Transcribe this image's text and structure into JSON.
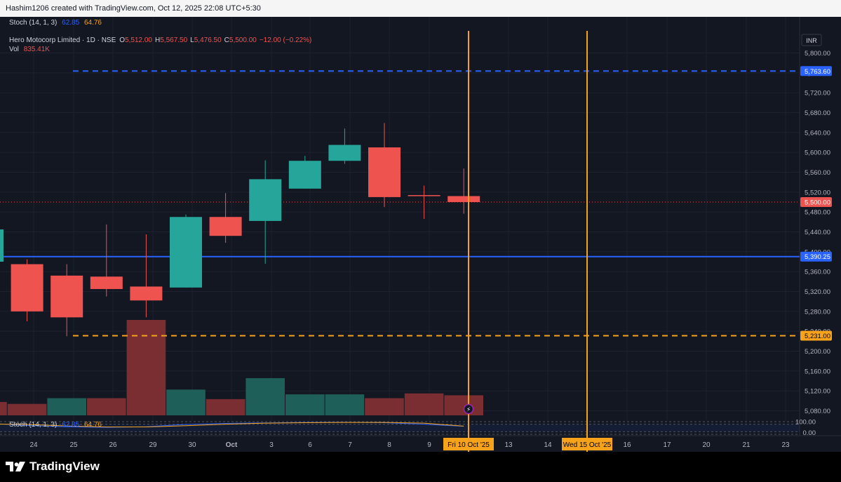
{
  "header": {
    "attribution": "Hashim1206 created with TradingView.com, Oct 12, 2025 22:08 UTC+5:30"
  },
  "legend": {
    "stoch_title": "Stoch (14, 1, 3)",
    "stoch_k": "62.85",
    "stoch_d": "64.76",
    "symbol": "Hero Motocorp Limited · 1D · NSE",
    "o_label": "O",
    "o_value": "5,512.00",
    "h_label": "H",
    "h_value": "5,567.50",
    "l_label": "L",
    "l_value": "5,476.50",
    "c_label": "C",
    "c_value": "5,500.00",
    "change": "−12.00 (−0.22%)",
    "vol_label": "Vol",
    "vol_value": "835.41K",
    "lower_stoch_title": "Stoch (14, 1, 3)",
    "lower_k": "62.85",
    "lower_d": "64.76"
  },
  "currency": "INR",
  "colors": {
    "up": "#26a69a",
    "down": "#ef5350",
    "vol_up": "#1f5f59",
    "vol_down": "#7a2e31",
    "blue": "#2962ff",
    "orange": "#f7a21b",
    "bg": "#131722",
    "grid": "#1e2230"
  },
  "price_axis": {
    "ticks": [
      "5,800.00",
      "5,760.00",
      "5,720.00",
      "5,680.00",
      "5,640.00",
      "5,600.00",
      "5,560.00",
      "5,520.00",
      "5,480.00",
      "5,440.00",
      "5,400.00",
      "5,360.00",
      "5,320.00",
      "5,280.00",
      "5,240.00",
      "5,200.00",
      "5,160.00",
      "5,120.00",
      "5,080.00"
    ],
    "labels": [
      {
        "text": "5,763.60",
        "value": 5763.6,
        "color": "#2962ff"
      },
      {
        "text": "5,500.00",
        "value": 5500,
        "color": "#ef5350"
      },
      {
        "text": "5,390.25",
        "value": 5390.25,
        "color": "#2962ff"
      },
      {
        "text": "5,231.00",
        "value": 5231,
        "color": "#f7a21b"
      }
    ],
    "stoch_ticks": [
      "100.00",
      "0.00"
    ]
  },
  "time_axis": {
    "labels": [
      "24",
      "25",
      "26",
      "29",
      "30",
      "Oct",
      "3",
      "6",
      "7",
      "8",
      "9",
      "13",
      "14",
      "16",
      "17",
      "20",
      "21",
      "23"
    ],
    "highlights": [
      "Fri 10 Oct '25",
      "Wed 15 Oct '25"
    ]
  },
  "chart_data": {
    "type": "candlestick",
    "symbol": "Hero Motocorp Limited",
    "interval": "1D",
    "exchange": "NSE",
    "ylim": [
      5050,
      5840
    ],
    "candles": [
      {
        "date": "23",
        "open": 5380,
        "high": 5450,
        "low": 5380,
        "close": 5445
      },
      {
        "date": "24",
        "open": 5375,
        "high": 5385,
        "low": 5260,
        "close": 5280
      },
      {
        "date": "25",
        "open": 5352,
        "high": 5375,
        "low": 5230,
        "close": 5268
      },
      {
        "date": "26",
        "open": 5350,
        "high": 5455,
        "low": 5310,
        "close": 5325
      },
      {
        "date": "29",
        "open": 5330,
        "high": 5435,
        "low": 5268,
        "close": 5302
      },
      {
        "date": "30",
        "open": 5328,
        "high": 5475,
        "low": 5328,
        "close": 5470
      },
      {
        "date": "1 Oct",
        "open": 5470,
        "high": 5518,
        "low": 5418,
        "close": 5432
      },
      {
        "date": "3",
        "open": 5462,
        "high": 5584,
        "low": 5376,
        "close": 5546
      },
      {
        "date": "6",
        "open": 5527,
        "high": 5593,
        "low": 5527,
        "close": 5583
      },
      {
        "date": "7",
        "open": 5583,
        "high": 5648,
        "low": 5577,
        "close": 5615
      },
      {
        "date": "8",
        "open": 5610,
        "high": 5659,
        "low": 5490,
        "close": 5510
      },
      {
        "date": "9",
        "open": 5514,
        "high": 5533,
        "low": 5466,
        "close": 5512
      },
      {
        "date": "10 Oct",
        "open": 5512,
        "high": 5567.5,
        "low": 5476.5,
        "close": 5500
      }
    ],
    "volume_direction": [
      "down",
      "down",
      "up",
      "down",
      "down",
      "up",
      "down",
      "up",
      "up",
      "up",
      "down",
      "down",
      "down"
    ],
    "volume_relative": [
      0.14,
      0.12,
      0.18,
      0.18,
      1.0,
      0.27,
      0.17,
      0.39,
      0.22,
      0.22,
      0.18,
      0.23,
      0.21
    ],
    "horizontal_lines": [
      {
        "value": 5763.6,
        "style": "dashed",
        "color": "#2962ff"
      },
      {
        "value": 5390.25,
        "style": "solid",
        "color": "#2962ff"
      },
      {
        "value": 5231.0,
        "style": "dashed",
        "color": "#f7a21b"
      },
      {
        "value": 5500.0,
        "style": "dotted",
        "color": "#ef5350"
      }
    ],
    "vertical_lines": [
      "Fri 10 Oct '25",
      "Wed 15 Oct '25"
    ],
    "stochastic": {
      "k": 62.85,
      "d": 64.76,
      "ylim": [
        0,
        100
      ]
    }
  }
}
